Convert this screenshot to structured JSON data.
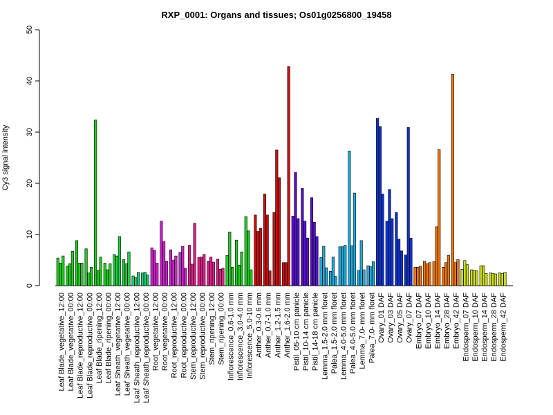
{
  "chart_data": {
    "type": "bar",
    "title": "RXP_0001: Organs and tissues; Os01g0256800_19458",
    "xlabel": "",
    "ylabel": "Cy3 signal intensity",
    "ylim": [
      0,
      50
    ],
    "yticks": [
      0,
      10,
      20,
      30,
      40,
      50
    ],
    "grid": false,
    "legend": "none",
    "groups": [
      {
        "label": "Leaf Blade_vegetative_12:00",
        "color": "#22cc22",
        "values": [
          5.4,
          4.4,
          5.8
        ]
      },
      {
        "label": "Leaf Blade_vegetative_00:00",
        "color": "#22cc22",
        "values": [
          3.8,
          4.3,
          6.7
        ]
      },
      {
        "label": "Leaf Blade_reproductive_12:00",
        "color": "#22cc22",
        "values": [
          8.8,
          4.4,
          4.4
        ]
      },
      {
        "label": "Leaf Blade_reproductive_00:00",
        "color": "#22cc22",
        "values": [
          7.2,
          2.5,
          3.6
        ]
      },
      {
        "label": "Leaf Blade_ripening_12:00",
        "color": "#22cc22",
        "values": [
          32.4,
          3.0,
          5.6
        ]
      },
      {
        "label": "Leaf Blade_ripening_00:00",
        "color": "#22cc22",
        "values": [
          4.4,
          3.1,
          4.3
        ]
      },
      {
        "label": "Leaf Sheath_vegetative_12:00",
        "color": "#22cc44",
        "values": [
          6.1,
          5.8,
          9.6
        ]
      },
      {
        "label": "Leaf Sheath_vegetative_00:00",
        "color": "#22cc44",
        "values": [
          5.1,
          4.3,
          6.6
        ]
      },
      {
        "label": "Leaf Sheath_reproductive_12:00",
        "color": "#22cc77",
        "values": [
          1.9,
          1.6,
          2.6
        ]
      },
      {
        "label": "Leaf Sheath_reproductive_00:00",
        "color": "#22cc77",
        "values": [
          2.5,
          2.6,
          2.1
        ]
      },
      {
        "label": "Root_vegetative_12:00",
        "color": "#cc22cc",
        "values": [
          7.4,
          6.9,
          4.4
        ]
      },
      {
        "label": "Root_vegetative_00:00",
        "color": "#cc22cc",
        "values": [
          12.6,
          8.6,
          4.8
        ]
      },
      {
        "label": "Root_reproductive_12:00",
        "color": "#cc22cc",
        "values": [
          7.0,
          5.0,
          5.8
        ]
      },
      {
        "label": "Root_reproductive_00:00",
        "color": "#cc22cc",
        "values": [
          6.5,
          7.7,
          3.4
        ]
      },
      {
        "label": "Stem_reproductive_12:00",
        "color": "#dd2288",
        "values": [
          7.9,
          4.2,
          12.2
        ]
      },
      {
        "label": "Stem_reproductive_00:00",
        "color": "#dd2288",
        "values": [
          5.5,
          5.6,
          6.1
        ]
      },
      {
        "label": "Stem_ripening_12:00",
        "color": "#dd2288",
        "values": [
          4.8,
          5.6,
          4.6
        ]
      },
      {
        "label": "Stem_ripening_00:00",
        "color": "#dd2288",
        "values": [
          5.2,
          3.2,
          3.4
        ]
      },
      {
        "label": "Inflorescence_0.6-1.0 mm",
        "color": "#22cc22",
        "values": [
          5.9,
          10.5,
          3.6
        ]
      },
      {
        "label": "Inflorescence_3.0-4.0 mm",
        "color": "#22cc22",
        "values": [
          8.9,
          4.0,
          6.6
        ]
      },
      {
        "label": "Inflorescence_5.0-10 mm",
        "color": "#22cc22",
        "values": [
          13.5,
          10.7,
          3.1
        ]
      },
      {
        "label": "Anther_0.3-0.6 mm",
        "color": "#cc1111",
        "values": [
          13.8,
          10.6,
          11.2
        ]
      },
      {
        "label": "Anther_0.7-1.0 mm",
        "color": "#cc1111",
        "values": [
          17.9,
          13.8,
          2.9
        ]
      },
      {
        "label": "Anther_1.2-1.5 mm",
        "color": "#cc1111",
        "values": [
          14.3,
          26.5,
          21.1
        ]
      },
      {
        "label": "Anther_1.6-2.0 mm",
        "color": "#cc1111",
        "values": [
          4.5,
          4.5,
          42.8
        ]
      },
      {
        "label": "Pistil_05-10 cm panicle",
        "color": "#5511cc",
        "values": [
          13.6,
          22.1,
          13.1
        ]
      },
      {
        "label": "Pistil_10-14 cm panicle",
        "color": "#5511cc",
        "values": [
          19.0,
          12.6,
          9.3
        ]
      },
      {
        "label": "Pistil_14-18 cm panicle",
        "color": "#5511cc",
        "values": [
          17.2,
          12.4,
          9.6
        ]
      },
      {
        "label": "Lemma_1.5-2.0 mm floret",
        "color": "#22aadd",
        "values": [
          5.5,
          7.7,
          3.5
        ]
      },
      {
        "label": "Palea_1.5-2.0 mm floret",
        "color": "#22aadd",
        "values": [
          2.8,
          5.6,
          1.8
        ]
      },
      {
        "label": "Lemma_4.0-5.0 mm floret",
        "color": "#22aadd",
        "values": [
          7.6,
          7.6,
          7.9
        ]
      },
      {
        "label": "Palea_4.0-5.0 mm floret",
        "color": "#22aadd",
        "values": [
          26.3,
          7.8,
          18.1
        ]
      },
      {
        "label": "Lemma_7.0- mm floret",
        "color": "#22aadd",
        "values": [
          3.0,
          8.8,
          3.1
        ]
      },
      {
        "label": "Palea_7.0- mm floret",
        "color": "#22aadd",
        "values": [
          3.9,
          3.7,
          4.7
        ]
      },
      {
        "label": "Ovary_01 DAF",
        "color": "#1133cc",
        "values": [
          32.7,
          31.1,
          17.9
        ]
      },
      {
        "label": "Ovary_03 DAF",
        "color": "#1133cc",
        "values": [
          12.6,
          18.8,
          13.1
        ]
      },
      {
        "label": "Ovary_05 DAF",
        "color": "#1133cc",
        "values": [
          14.3,
          9.1,
          6.8
        ]
      },
      {
        "label": "Ovary_07 DAF",
        "color": "#1133cc",
        "values": [
          6.0,
          30.9,
          9.3
        ]
      },
      {
        "label": "Embryo_07 DAF",
        "color": "#ee7711",
        "values": [
          3.6,
          3.6,
          3.8
        ]
      },
      {
        "label": "Embryo_10 DAF",
        "color": "#ee7711",
        "values": [
          4.8,
          4.3,
          4.5
        ]
      },
      {
        "label": "Embryo_14 DAF",
        "color": "#ee7711",
        "values": [
          4.7,
          11.5,
          26.6
        ]
      },
      {
        "label": "Embryo_28 DAF",
        "color": "#ee7711",
        "values": [
          3.6,
          4.5,
          5.9
        ]
      },
      {
        "label": "Embryo_42 DAF",
        "color": "#ee7711",
        "values": [
          41.3,
          4.5,
          5.1
        ]
      },
      {
        "label": "Endosperm_07 DAF",
        "color": "#ccdd22",
        "values": [
          3.2,
          4.9,
          4.1
        ]
      },
      {
        "label": "Endosperm_10 DAF",
        "color": "#ccdd22",
        "values": [
          3.1,
          3.0,
          2.9
        ]
      },
      {
        "label": "Endosperm_14 DAF",
        "color": "#ccdd22",
        "values": [
          3.9,
          3.9,
          2.4
        ]
      },
      {
        "label": "Endosperm_28 DAF",
        "color": "#ccdd22",
        "values": [
          2.5,
          2.4,
          2.3
        ]
      },
      {
        "label": "Endosperm_42 DAF",
        "color": "#ccdd22",
        "values": [
          2.5,
          2.4,
          2.6
        ]
      }
    ]
  }
}
